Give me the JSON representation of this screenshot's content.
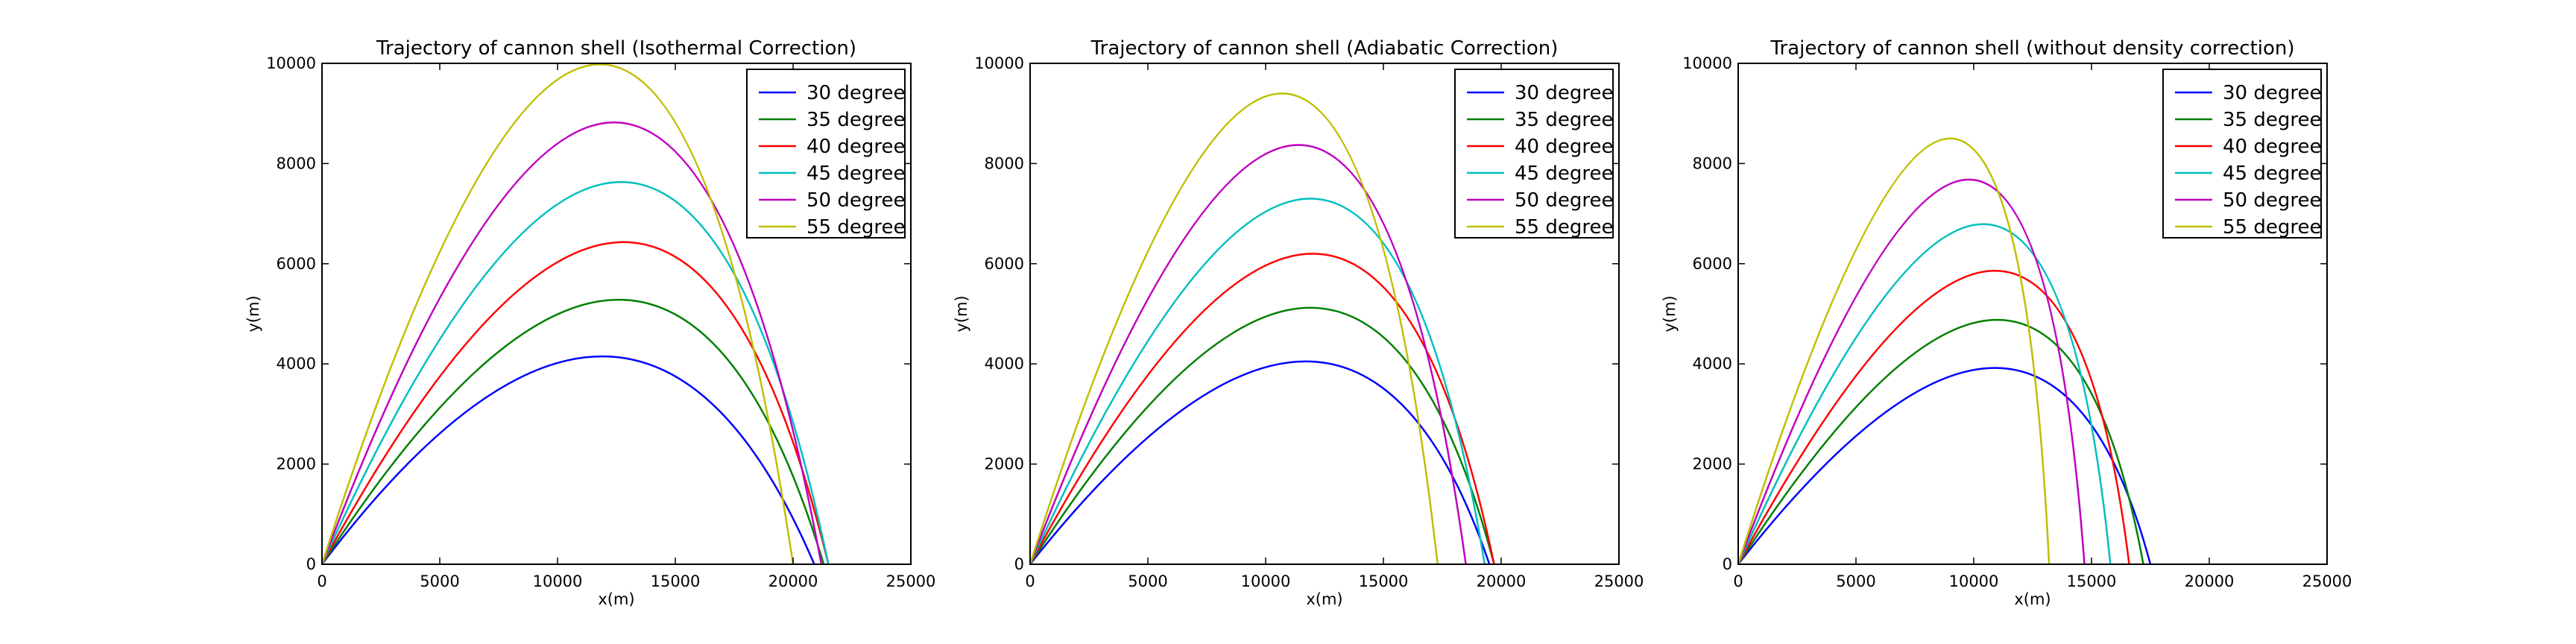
{
  "chart_data": [
    {
      "type": "line",
      "title": "Trajectory of cannon shell (Isothermal Correction)",
      "xlabel": "x(m)",
      "ylabel": "y(m)",
      "xlim": [
        0,
        25000
      ],
      "ylim": [
        0,
        10000
      ],
      "xticks": [
        0,
        5000,
        10000,
        15000,
        20000,
        25000
      ],
      "yticks": [
        0,
        2000,
        4000,
        6000,
        8000,
        10000
      ],
      "grid": false,
      "legend": "top-right",
      "series": [
        {
          "name": "30 degree",
          "color": "#0000ff",
          "angle": 30,
          "peak": [
            11900,
            4150
          ],
          "range": 20900
        },
        {
          "name": "35 degree",
          "color": "#008000",
          "angle": 35,
          "peak": [
            12600,
            5280
          ],
          "range": 21300
        },
        {
          "name": "40 degree",
          "color": "#ff0000",
          "angle": 40,
          "peak": [
            12800,
            6430
          ],
          "range": 21500
        },
        {
          "name": "45 degree",
          "color": "#00bfbf",
          "angle": 45,
          "peak": [
            12700,
            7630
          ],
          "range": 21500
        },
        {
          "name": "50 degree",
          "color": "#bf00bf",
          "angle": 50,
          "peak": [
            12400,
            8820
          ],
          "range": 21200
        },
        {
          "name": "55 degree",
          "color": "#bfbf00",
          "angle": 55,
          "peak": [
            11800,
            9980
          ],
          "range": 20000
        }
      ]
    },
    {
      "type": "line",
      "title": "Trajectory of cannon shell (Adiabatic Correction)",
      "xlabel": "x(m)",
      "ylabel": "y(m)",
      "xlim": [
        0,
        25000
      ],
      "ylim": [
        0,
        10000
      ],
      "xticks": [
        0,
        5000,
        10000,
        15000,
        20000,
        25000
      ],
      "yticks": [
        0,
        2000,
        4000,
        6000,
        8000,
        10000
      ],
      "grid": false,
      "legend": "top-right",
      "series": [
        {
          "name": "30 degree",
          "color": "#0000ff",
          "angle": 30,
          "peak": [
            11700,
            4050
          ],
          "range": 19500
        },
        {
          "name": "35 degree",
          "color": "#008000",
          "angle": 35,
          "peak": [
            11900,
            5120
          ],
          "range": 19700
        },
        {
          "name": "40 degree",
          "color": "#ff0000",
          "angle": 40,
          "peak": [
            12000,
            6200
          ],
          "range": 19700
        },
        {
          "name": "45 degree",
          "color": "#00bfbf",
          "angle": 45,
          "peak": [
            11900,
            7300
          ],
          "range": 19300
        },
        {
          "name": "50 degree",
          "color": "#bf00bf",
          "angle": 50,
          "peak": [
            11400,
            8370
          ],
          "range": 18500
        },
        {
          "name": "55 degree",
          "color": "#bfbf00",
          "angle": 55,
          "peak": [
            10700,
            9400
          ],
          "range": 17300
        }
      ]
    },
    {
      "type": "line",
      "title": "Trajectory of cannon shell (without density correction)",
      "xlabel": "x(m)",
      "ylabel": "y(m)",
      "xlim": [
        0,
        25000
      ],
      "ylim": [
        0,
        10000
      ],
      "xticks": [
        0,
        5000,
        10000,
        15000,
        20000,
        25000
      ],
      "yticks": [
        0,
        2000,
        4000,
        6000,
        8000,
        10000
      ],
      "grid": false,
      "legend": "top-right",
      "series": [
        {
          "name": "30 degree",
          "color": "#0000ff",
          "angle": 30,
          "peak": [
            10900,
            3920
          ],
          "range": 17500
        },
        {
          "name": "35 degree",
          "color": "#008000",
          "angle": 35,
          "peak": [
            11000,
            4880
          ],
          "range": 17200
        },
        {
          "name": "40 degree",
          "color": "#ff0000",
          "angle": 40,
          "peak": [
            10900,
            5860
          ],
          "range": 16600
        },
        {
          "name": "45 degree",
          "color": "#00bfbf",
          "angle": 45,
          "peak": [
            10400,
            6790
          ],
          "range": 15800
        },
        {
          "name": "50 degree",
          "color": "#bf00bf",
          "angle": 50,
          "peak": [
            9800,
            7680
          ],
          "range": 14700
        },
        {
          "name": "55 degree",
          "color": "#bfbf00",
          "angle": 55,
          "peak": [
            9000,
            8500
          ],
          "range": 13200
        }
      ]
    }
  ]
}
